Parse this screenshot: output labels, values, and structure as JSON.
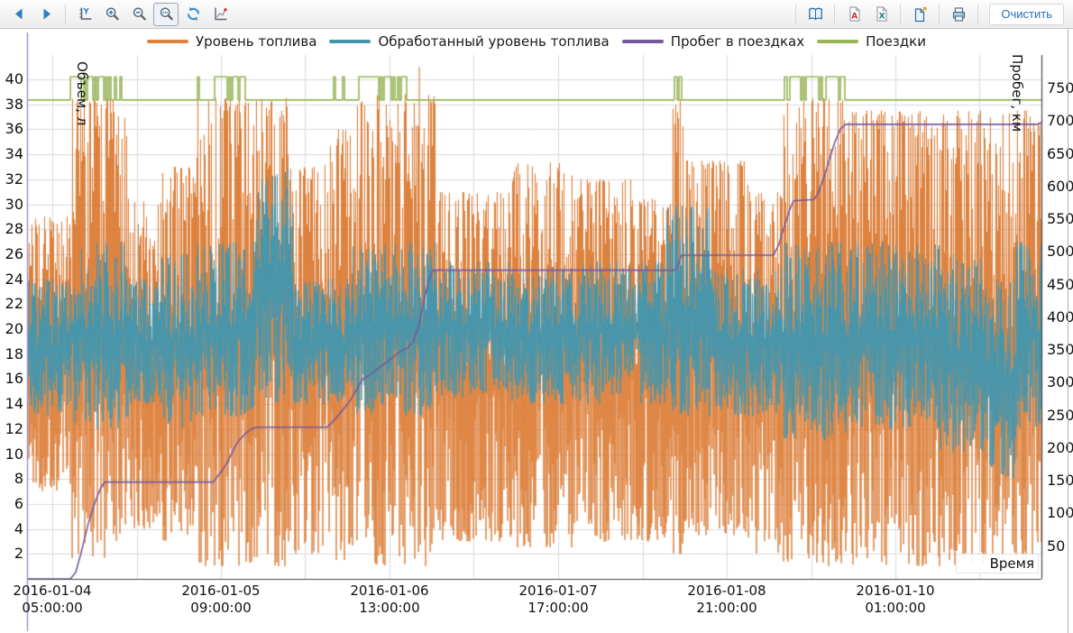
{
  "toolbar": {
    "clear_label": "Очистить",
    "active_tool": "zoom-region",
    "icons": [
      "arrow-left",
      "arrow-right",
      "y-axis-scale",
      "zoom-in",
      "zoom-out",
      "zoom-region",
      "refresh",
      "line-chart",
      "report-book",
      "export-pdf",
      "export-excel",
      "export-file",
      "print"
    ]
  },
  "legend": {
    "items": [
      {
        "label": "Уровень топлива",
        "color": "#dd813d"
      },
      {
        "label": "Обработанный уровень топлива",
        "color": "#4596ad"
      },
      {
        "label": "Пробег в поездках",
        "color": "#75599e"
      },
      {
        "label": "Поездки",
        "color": "#97b457"
      }
    ]
  },
  "chart_data": {
    "type": "line",
    "noise_seed": 1337,
    "x_axis": {
      "label": "Время",
      "ticks": [
        {
          "t": 0.0249,
          "date": "2016-01-04",
          "time": "05:00:00"
        },
        {
          "t": 0.1911,
          "date": "2016-01-05",
          "time": "09:00:00"
        },
        {
          "t": 0.3573,
          "date": "2016-01-06",
          "time": "13:00:00"
        },
        {
          "t": 0.5236,
          "date": "2016-01-07",
          "time": "17:00:00"
        },
        {
          "t": 0.6898,
          "date": "2016-01-08",
          "time": "21:00:00"
        },
        {
          "t": 0.856,
          "date": "2016-01-10",
          "time": "01:00:00"
        }
      ],
      "grid_ts": [
        0.0249,
        0.108,
        0.1911,
        0.2742,
        0.3573,
        0.4404,
        0.5236,
        0.6067,
        0.6898,
        0.7729,
        0.856,
        0.9391
      ]
    },
    "y_left": {
      "label": "Объем, л",
      "min": 0,
      "max": 41,
      "ticks": [
        2,
        4,
        6,
        8,
        10,
        12,
        14,
        16,
        18,
        20,
        22,
        24,
        26,
        28,
        30,
        32,
        34,
        36,
        38,
        40
      ]
    },
    "y_right": {
      "label": "Пробег, км",
      "min": 0,
      "max": 782,
      "ticks": [
        50,
        100,
        150,
        200,
        250,
        300,
        350,
        400,
        450,
        500,
        550,
        600,
        650,
        700,
        750
      ]
    },
    "series": [
      {
        "name": "Уровень топлива",
        "type": "noisy-line",
        "axis": "left",
        "color": "#dd813d",
        "envelope": [
          [
            0.0,
            0.043,
            7,
            29
          ],
          [
            0.043,
            0.098,
            1.5,
            38.5
          ],
          [
            0.098,
            0.132,
            4,
            30.5
          ],
          [
            0.132,
            0.167,
            3,
            33
          ],
          [
            0.167,
            0.258,
            1,
            38.5
          ],
          [
            0.258,
            0.293,
            2,
            33
          ],
          [
            0.293,
            0.325,
            1.5,
            36
          ],
          [
            0.325,
            0.402,
            1,
            38.8
          ],
          [
            0.402,
            0.476,
            3,
            31
          ],
          [
            0.476,
            0.542,
            2.5,
            33.5
          ],
          [
            0.542,
            0.596,
            3,
            32
          ],
          [
            0.596,
            0.636,
            3,
            30.5
          ],
          [
            0.636,
            0.647,
            2,
            38.5
          ],
          [
            0.647,
            0.711,
            3.5,
            33.5
          ],
          [
            0.711,
            0.745,
            2,
            31
          ],
          [
            0.745,
            0.809,
            1,
            38.5
          ],
          [
            0.809,
            1.0,
            1,
            37.5
          ]
        ],
        "spikes": [
          [
            0.3867,
            41
          ]
        ]
      },
      {
        "name": "Обработанный уровень топлива",
        "type": "noisy-line",
        "axis": "left",
        "color": "#4596ad",
        "envelope": [
          [
            0.0,
            0.043,
            13,
            24
          ],
          [
            0.043,
            0.1,
            12,
            27
          ],
          [
            0.1,
            0.132,
            14,
            24
          ],
          [
            0.132,
            0.167,
            12,
            26
          ],
          [
            0.167,
            0.225,
            13,
            27
          ],
          [
            0.225,
            0.262,
            14,
            33
          ],
          [
            0.262,
            0.32,
            14,
            24
          ],
          [
            0.32,
            0.402,
            13,
            27
          ],
          [
            0.402,
            0.476,
            14.5,
            25.5
          ],
          [
            0.476,
            0.542,
            14,
            25
          ],
          [
            0.542,
            0.63,
            14,
            25.5
          ],
          [
            0.63,
            0.672,
            13,
            30
          ],
          [
            0.672,
            0.745,
            13,
            25
          ],
          [
            0.745,
            0.81,
            11,
            27
          ],
          [
            0.81,
            0.9,
            12,
            27
          ],
          [
            0.9,
            0.945,
            10,
            26
          ],
          [
            0.945,
            0.975,
            8,
            24
          ],
          [
            0.975,
            1.0,
            12,
            27
          ]
        ],
        "spikes": []
      },
      {
        "name": "Пробег в поездках",
        "type": "step-line",
        "axis": "right",
        "color": "#75599e",
        "points": [
          [
            0,
            0
          ],
          [
            0.0427,
            0
          ],
          [
            0.048,
            10
          ],
          [
            0.0533,
            40
          ],
          [
            0.0604,
            85
          ],
          [
            0.0676,
            120
          ],
          [
            0.0729,
            140
          ],
          [
            0.0764,
            148
          ],
          [
            0.184,
            148
          ],
          [
            0.1867,
            155
          ],
          [
            0.192,
            165
          ],
          [
            0.1973,
            178
          ],
          [
            0.2027,
            195
          ],
          [
            0.208,
            210
          ],
          [
            0.2151,
            222
          ],
          [
            0.2222,
            230
          ],
          [
            0.2267,
            232
          ],
          [
            0.296,
            232
          ],
          [
            0.304,
            245
          ],
          [
            0.3111,
            258
          ],
          [
            0.3182,
            272
          ],
          [
            0.3244,
            288
          ],
          [
            0.3307,
            305
          ],
          [
            0.3378,
            312
          ],
          [
            0.3467,
            322
          ],
          [
            0.3573,
            335
          ],
          [
            0.368,
            348
          ],
          [
            0.3751,
            353
          ],
          [
            0.3804,
            362
          ],
          [
            0.3858,
            385
          ],
          [
            0.3911,
            425
          ],
          [
            0.3956,
            455
          ],
          [
            0.4,
            472
          ],
          [
            0.6382,
            472
          ],
          [
            0.6418,
            480
          ],
          [
            0.6453,
            495
          ],
          [
            0.736,
            495
          ],
          [
            0.7413,
            512
          ],
          [
            0.7467,
            540
          ],
          [
            0.752,
            565
          ],
          [
            0.7556,
            578
          ],
          [
            0.776,
            580
          ],
          [
            0.7804,
            592
          ],
          [
            0.7858,
            615
          ],
          [
            0.7911,
            642
          ],
          [
            0.7964,
            668
          ],
          [
            0.8018,
            688
          ],
          [
            0.8071,
            695
          ],
          [
            0.9956,
            695
          ],
          [
            1,
            698
          ]
        ]
      },
      {
        "name": "Поездки",
        "type": "pulse",
        "axis": "left",
        "color": "#97b457",
        "baseline": 38.35,
        "high": 40.2,
        "pulses": [
          [
            0.0427,
            0.0533
          ],
          [
            0.056,
            0.0578
          ],
          [
            0.0596,
            0.0649
          ],
          [
            0.0667,
            0.0684
          ],
          [
            0.0702,
            0.0756
          ],
          [
            0.0773,
            0.0791
          ],
          [
            0.0809,
            0.0827
          ],
          [
            0.0862,
            0.088
          ],
          [
            0.0916,
            0.0933
          ],
          [
            0.168,
            0.1698
          ],
          [
            0.1849,
            0.1973
          ],
          [
            0.1991,
            0.2009
          ],
          [
            0.2027,
            0.208
          ],
          [
            0.2098,
            0.2151
          ],
          [
            0.3022,
            0.304
          ],
          [
            0.3111,
            0.3129
          ],
          [
            0.3271,
            0.3467
          ],
          [
            0.3484,
            0.3502
          ],
          [
            0.352,
            0.3591
          ],
          [
            0.3609,
            0.3627
          ],
          [
            0.3653,
            0.3671
          ],
          [
            0.3689,
            0.3742
          ],
          [
            0.6382,
            0.6409
          ],
          [
            0.6427,
            0.6453
          ],
          [
            0.7467,
            0.7493
          ],
          [
            0.752,
            0.7627
          ],
          [
            0.7644,
            0.7662
          ],
          [
            0.768,
            0.7804
          ],
          [
            0.7822,
            0.784
          ],
          [
            0.7876,
            0.8
          ],
          [
            0.8018,
            0.8062
          ]
        ]
      }
    ]
  }
}
